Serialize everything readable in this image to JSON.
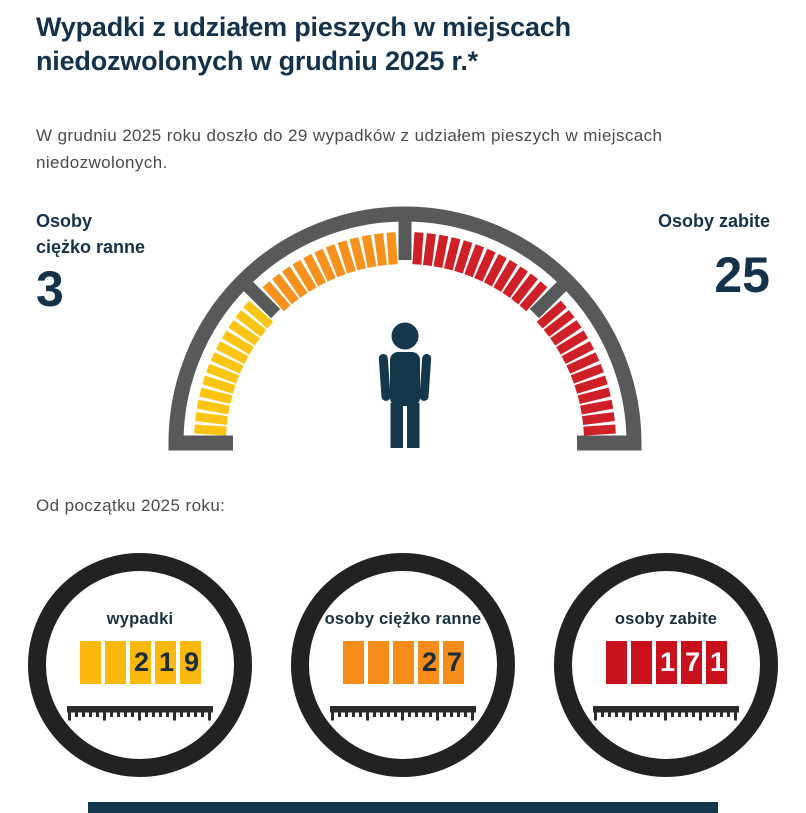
{
  "page": {
    "title_lines": [
      "Wypadki z udziałem pieszych w miejscach",
      "niedozwolonych w grudniu 2025 r.*"
    ],
    "subtitle_lines": [
      "W grudniu 2025 roku doszło do 29 wypadków z udziałem pieszych w miejscach",
      "niedozwolonych."
    ]
  },
  "colors": {
    "navy": "#14334A",
    "text_gray": "#4A4B4D",
    "arc_gray": "#58595B",
    "yellow": "#FDC513",
    "orange": "#F6911E",
    "red": "#D02027",
    "cell_yellow": "#FBB80E",
    "cell_orange": "#F68C1A",
    "cell_red": "#C8111D",
    "circle_black": "#242122",
    "ruler_black": "#2B2B2B",
    "footer_navy": "#14374D"
  },
  "gauge": {
    "left_label_lines": [
      "Osoby",
      "ciężko ranne"
    ],
    "left_value": "3",
    "right_label": "Osoby zabite",
    "right_value": "25",
    "arc_color": "#58595B",
    "person_color": "#14374C",
    "sections": [
      {
        "name": "injured-outer",
        "color": "#FDC513",
        "ticks": 12
      },
      {
        "name": "injured-inner",
        "color": "#F6911E",
        "ticks": 12
      },
      {
        "name": "killed-inner",
        "color": "#D02027",
        "ticks": 12
      },
      {
        "name": "killed-outer",
        "color": "#D02027",
        "ticks": 12
      }
    ]
  },
  "ytd": {
    "heading": "Od początku 2025 roku:",
    "counters": [
      {
        "label": "wypadki",
        "value": "219",
        "digits": [
          "",
          "",
          "2",
          "1",
          "9"
        ],
        "cell_color": "#FBB80E",
        "digit_color": "#1C2C39"
      },
      {
        "label": "osoby ciężko ranne",
        "value": "27",
        "digits": [
          "",
          "",
          "",
          "2",
          "7"
        ],
        "cell_color": "#F68C1A",
        "digit_color": "#1C2C39"
      },
      {
        "label": "osoby zabite",
        "value": "171",
        "digits": [
          "",
          "",
          "1",
          "7",
          "1"
        ],
        "cell_color": "#C8111D",
        "digit_color": "#FFFFFF"
      }
    ]
  },
  "footer": {
    "bar_color": "#14374D"
  },
  "chart_data": [
    {
      "type": "gauge",
      "title": "Wypadki z udziałem pieszych w miejscach niedozwolonych w grudniu 2025 r.*",
      "subtitle": "W grudniu 2025 roku doszło do 29 wypadków z udziałem pieszych w miejscach niedozwolonych.",
      "period": "grudzień 2025",
      "total_accidents": 29,
      "series": [
        {
          "name": "Osoby ciężko ranne",
          "value": 3,
          "colors": [
            "#FDC513",
            "#F6911E"
          ]
        },
        {
          "name": "Osoby zabite",
          "value": 25,
          "color": "#D02027"
        }
      ],
      "legend_position": "sides"
    },
    {
      "type": "counter",
      "title": "Od początku 2025 roku:",
      "categories": [
        "wypadki",
        "osoby ciężko ranne",
        "osoby zabite"
      ],
      "values": [
        219,
        27,
        171
      ],
      "colors": [
        "#FBB80E",
        "#F68C1A",
        "#C8111D"
      ]
    }
  ]
}
